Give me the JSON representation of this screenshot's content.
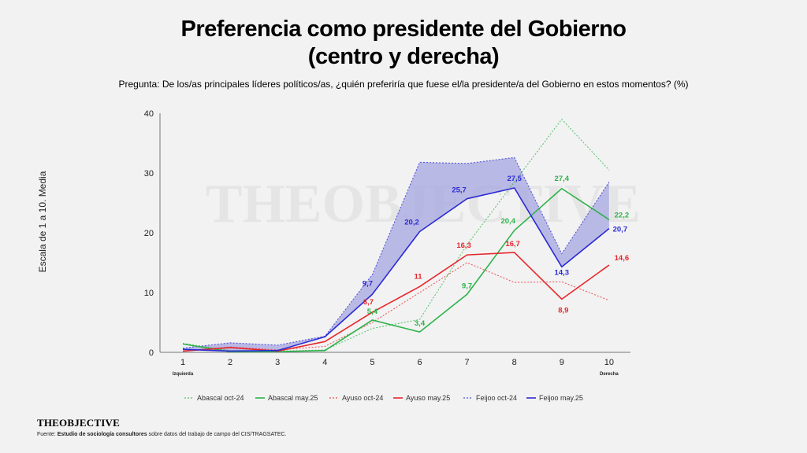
{
  "header": {
    "title_line1": "Preferencia como presidente del Gobierno",
    "title_line2": "(centro y derecha)",
    "question": "Pregunta: De los/as principales líderes políticos/as, ¿quién preferiría que fuese el/la presidente/a del Gobierno en estos momentos? (%)"
  },
  "watermark": "THEOBJECTIVE",
  "footer": {
    "brand_bold": "THEOBJECTIVE",
    "source_prefix": "Fuente: ",
    "source_bold": "Estudio de sociología consultores",
    "source_rest": " sobre datos del trabajo de campo del CIS/TRAGSATEC."
  },
  "colors": {
    "abascal": "#2db34a",
    "ayuso": "#e8262b",
    "feijoo": "#2b2bd6",
    "band": "#a5a5e0"
  },
  "chart_data": {
    "type": "line",
    "ylabel": "Escala de 1 a 10. Media",
    "xlabel": "",
    "x": [
      1,
      2,
      3,
      4,
      5,
      6,
      7,
      8,
      9,
      10
    ],
    "x_end_labels": {
      "left": "Izquierda",
      "right": "Derecha"
    },
    "ylim": [
      0,
      40
    ],
    "yticks": [
      0,
      10,
      20,
      30,
      40
    ],
    "grid": false,
    "legend_position": "bottom",
    "shaded_band": {
      "between": [
        "Feijoo oct-24",
        "Feijoo may.25"
      ]
    },
    "series": [
      {
        "name": "Abascal oct-24",
        "key": "abascal",
        "style": "dotted",
        "values": [
          1.5,
          0.3,
          0.2,
          0.4,
          4.0,
          5.5,
          18.0,
          28.5,
          39.0,
          30.5
        ]
      },
      {
        "name": "Abascal may.25",
        "key": "abascal",
        "style": "solid",
        "values": [
          1.4,
          0.1,
          0.1,
          0.3,
          5.4,
          3.4,
          9.7,
          20.4,
          27.4,
          22.2
        ],
        "labels": [
          null,
          null,
          null,
          null,
          "5,4",
          "3,4",
          "9,7",
          "20,4",
          "27,4",
          "22,2"
        ]
      },
      {
        "name": "Ayuso oct-24",
        "key": "ayuso",
        "style": "dotted",
        "values": [
          0.2,
          0.9,
          0.4,
          1.0,
          5.0,
          10.0,
          15.0,
          11.7,
          11.8,
          8.7
        ]
      },
      {
        "name": "Ayuso may.25",
        "key": "ayuso",
        "style": "solid",
        "values": [
          0.2,
          0.8,
          0.2,
          1.8,
          6.7,
          11.0,
          16.3,
          16.7,
          8.9,
          14.6
        ],
        "labels": [
          null,
          null,
          null,
          null,
          "6,7",
          "11",
          "16,3",
          "16,7",
          "8,9",
          "14,6"
        ]
      },
      {
        "name": "Feijoo oct-24",
        "key": "feijoo",
        "style": "dotted",
        "values": [
          0.7,
          1.6,
          1.2,
          2.7,
          13.0,
          31.8,
          31.6,
          32.6,
          16.5,
          28.5
        ]
      },
      {
        "name": "Feijoo may.25",
        "key": "feijoo",
        "style": "solid",
        "values": [
          0.5,
          0.2,
          0.3,
          2.6,
          9.7,
          20.2,
          25.7,
          27.5,
          14.3,
          20.7
        ],
        "labels": [
          null,
          null,
          null,
          null,
          "9,7",
          "20,2",
          "25,7",
          "27,5",
          "14,3",
          "20,7"
        ]
      }
    ]
  }
}
